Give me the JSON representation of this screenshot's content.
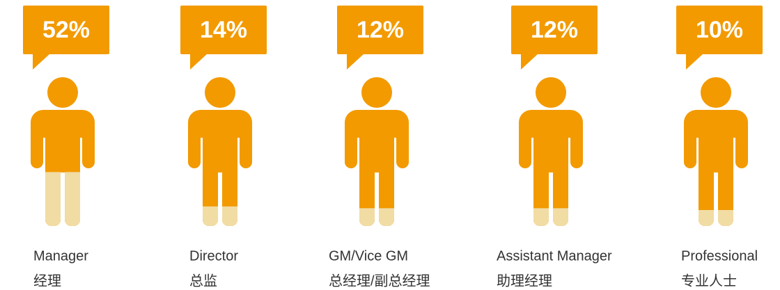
{
  "chart_data": {
    "type": "pictogram",
    "categories": [
      "Manager",
      "Director",
      "GM/Vice GM",
      "Assistant Manager",
      "Professional"
    ],
    "categories_zh": [
      "经理",
      "总监",
      "总经理/副总经理",
      "助理经理",
      "专业人士"
    ],
    "values": [
      52,
      14,
      12,
      12,
      10
    ],
    "value_labels": [
      "52%",
      "14%",
      "12%",
      "12%",
      "10%"
    ],
    "color": "#f29a00",
    "secondary_color": "#f1dca4"
  }
}
